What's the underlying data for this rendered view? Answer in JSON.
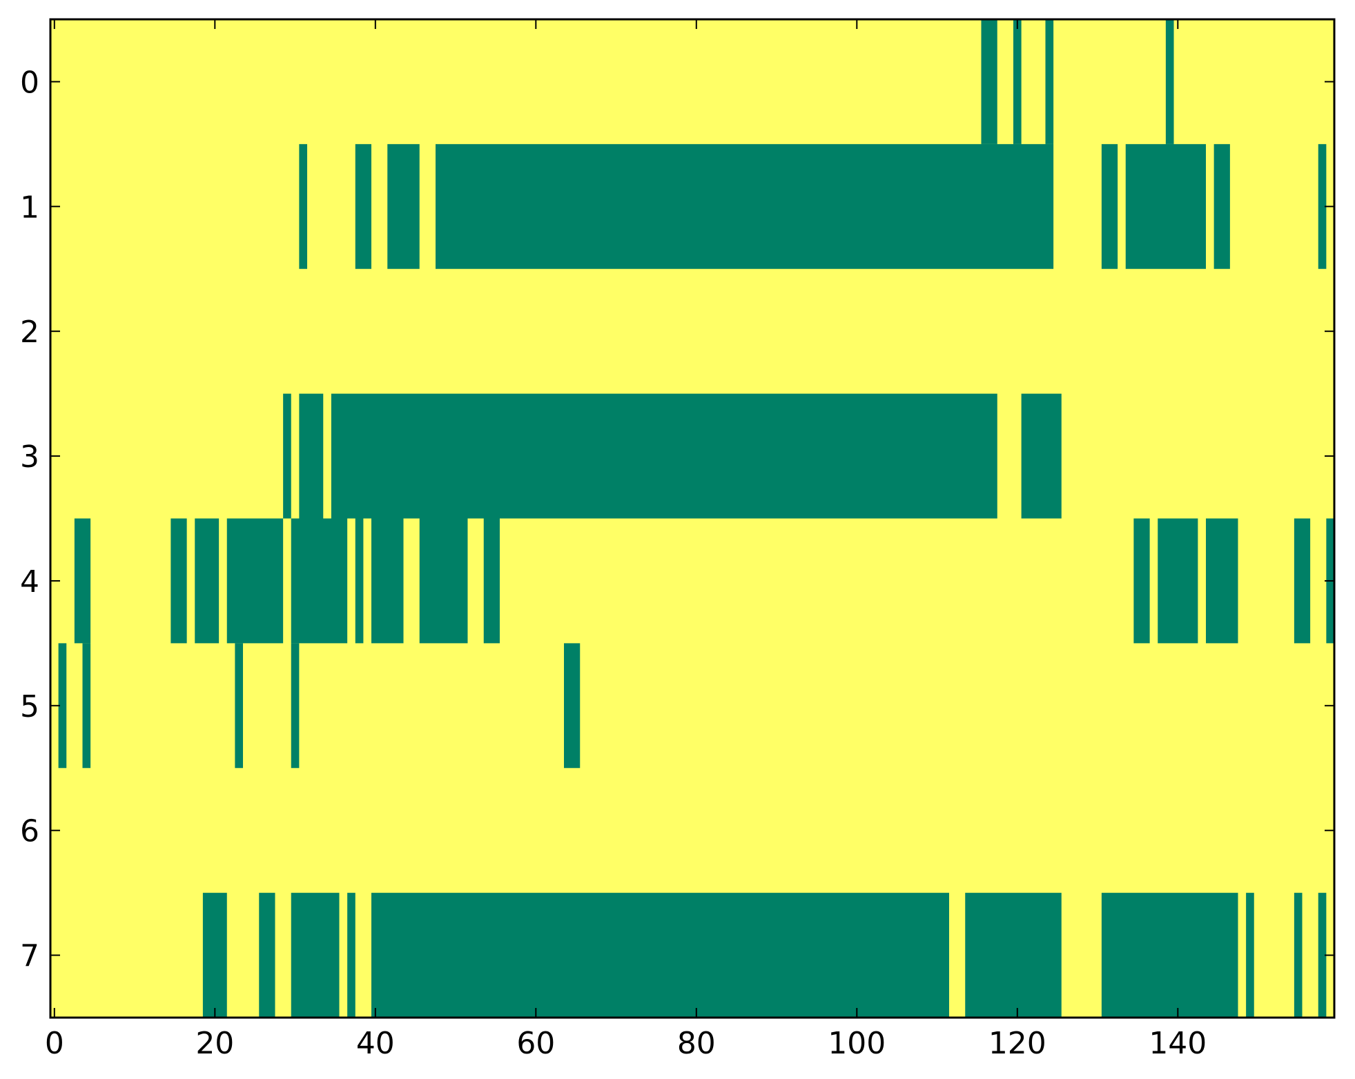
{
  "chart_data": {
    "type": "heatmap",
    "title": "",
    "xlabel": "",
    "ylabel": "",
    "rows": 8,
    "xlim": [
      -0.5,
      159.5
    ],
    "ylim": [
      7.5,
      -0.5
    ],
    "x_ticks": [
      0,
      20,
      40,
      60,
      80,
      100,
      120,
      140
    ],
    "x_tick_labels": [
      "0",
      "20",
      "40",
      "60",
      "80",
      "100",
      "120",
      "140"
    ],
    "y_ticks": [
      0,
      1,
      2,
      3,
      4,
      5,
      6,
      7
    ],
    "y_tick_labels": [
      "0",
      "1",
      "2",
      "3",
      "4",
      "5",
      "6",
      "7"
    ],
    "colors": {
      "background_value": "#ffff66",
      "active_value": "#008066",
      "axes": "#000000"
    },
    "grid": false,
    "legend": "none",
    "active_cells": [
      {
        "row": 0,
        "ranges": [
          [
            116,
            117
          ],
          [
            120,
            120
          ],
          [
            124,
            124
          ],
          [
            139,
            139
          ]
        ]
      },
      {
        "row": 1,
        "ranges": [
          [
            31,
            31
          ],
          [
            38,
            39
          ],
          [
            42,
            45
          ],
          [
            48,
            124
          ],
          [
            131,
            132
          ],
          [
            134,
            143
          ],
          [
            145,
            146
          ],
          [
            158,
            158
          ]
        ]
      },
      {
        "row": 2,
        "ranges": []
      },
      {
        "row": 3,
        "ranges": [
          [
            29,
            29
          ],
          [
            31,
            33
          ],
          [
            35,
            117
          ],
          [
            121,
            125
          ]
        ]
      },
      {
        "row": 4,
        "ranges": [
          [
            3,
            4
          ],
          [
            15,
            16
          ],
          [
            18,
            20
          ],
          [
            22,
            28
          ],
          [
            30,
            36
          ],
          [
            38,
            38
          ],
          [
            40,
            43
          ],
          [
            46,
            51
          ],
          [
            54,
            55
          ],
          [
            135,
            136
          ],
          [
            138,
            142
          ],
          [
            144,
            147
          ],
          [
            155,
            156
          ],
          [
            159,
            159
          ]
        ]
      },
      {
        "row": 5,
        "ranges": [
          [
            1,
            1
          ],
          [
            4,
            4
          ],
          [
            23,
            23
          ],
          [
            30,
            30
          ],
          [
            64,
            65
          ]
        ]
      },
      {
        "row": 6,
        "ranges": []
      },
      {
        "row": 7,
        "ranges": [
          [
            19,
            21
          ],
          [
            26,
            27
          ],
          [
            30,
            35
          ],
          [
            37,
            37
          ],
          [
            40,
            111
          ],
          [
            114,
            125
          ],
          [
            131,
            147
          ],
          [
            149,
            149
          ],
          [
            155,
            155
          ],
          [
            158,
            158
          ]
        ]
      }
    ]
  }
}
